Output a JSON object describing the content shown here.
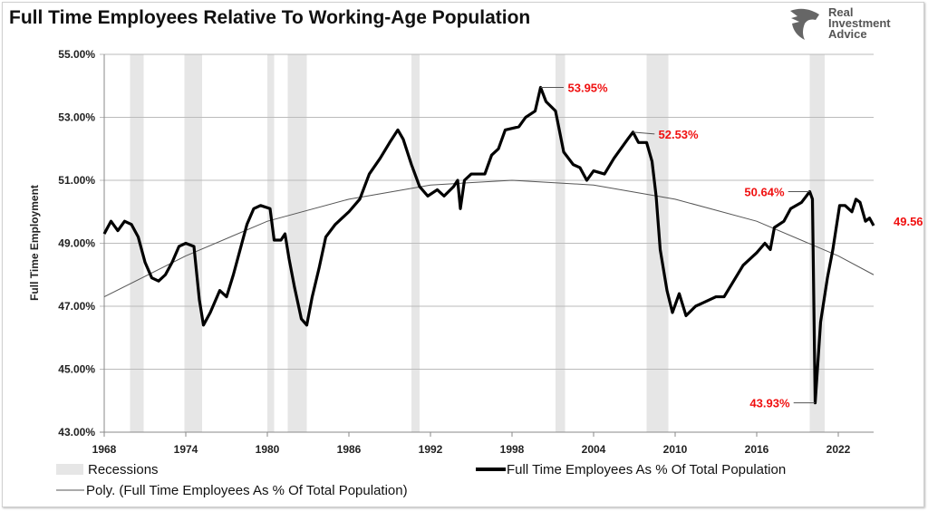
{
  "title": "Full Time Employees Relative To Working-Age Population",
  "logo": {
    "line1": "Real",
    "line2": "Investment",
    "line3": "Advice"
  },
  "chart_data": {
    "type": "line",
    "title": "Full Time Employees Relative To Working-Age Population",
    "ylabel": "Full Time Employment",
    "xlabel": "",
    "xlim": [
      1968,
      2024.6
    ],
    "ylim": [
      43,
      55
    ],
    "x_ticks": [
      "1968",
      "1974",
      "1980",
      "1986",
      "1992",
      "1998",
      "2004",
      "2010",
      "2016",
      "2022"
    ],
    "y_ticks": [
      "55.00%",
      "53.00%",
      "51.00%",
      "49.00%",
      "47.00%",
      "45.00%",
      "43.00%"
    ],
    "grid": "horizontal",
    "legend": {
      "placement": "bottom",
      "recessions": "Recessions",
      "series": "Full Time Employees As % Of Total Population",
      "trend": "Poly. (Full Time Employees As % Of Total Population)"
    },
    "recessions": [
      [
        1969.9,
        1970.9
      ],
      [
        1973.9,
        1975.2
      ],
      [
        1980.0,
        1980.5
      ],
      [
        1981.5,
        1982.9
      ],
      [
        1990.6,
        1991.2
      ],
      [
        2001.2,
        2001.9
      ],
      [
        2007.9,
        2009.5
      ],
      [
        2019.9,
        2021.0
      ]
    ],
    "series": [
      {
        "name": "Full Time Employees As % Of Total Population",
        "color": "#000000",
        "points": [
          [
            1968.0,
            49.3
          ],
          [
            1968.5,
            49.7
          ],
          [
            1969.0,
            49.4
          ],
          [
            1969.5,
            49.7
          ],
          [
            1970.0,
            49.6
          ],
          [
            1970.5,
            49.2
          ],
          [
            1971.0,
            48.4
          ],
          [
            1971.5,
            47.9
          ],
          [
            1972.0,
            47.8
          ],
          [
            1972.5,
            48.0
          ],
          [
            1973.0,
            48.4
          ],
          [
            1973.5,
            48.9
          ],
          [
            1974.0,
            49.0
          ],
          [
            1974.6,
            48.9
          ],
          [
            1975.0,
            47.2
          ],
          [
            1975.3,
            46.4
          ],
          [
            1975.8,
            46.8
          ],
          [
            1976.5,
            47.5
          ],
          [
            1977.0,
            47.3
          ],
          [
            1977.5,
            48.0
          ],
          [
            1978.0,
            48.8
          ],
          [
            1978.5,
            49.6
          ],
          [
            1979.0,
            50.1
          ],
          [
            1979.5,
            50.2
          ],
          [
            1980.2,
            50.1
          ],
          [
            1980.5,
            49.1
          ],
          [
            1981.0,
            49.1
          ],
          [
            1981.3,
            49.3
          ],
          [
            1981.6,
            48.5
          ],
          [
            1982.0,
            47.6
          ],
          [
            1982.5,
            46.6
          ],
          [
            1982.9,
            46.4
          ],
          [
            1983.3,
            47.3
          ],
          [
            1983.8,
            48.2
          ],
          [
            1984.3,
            49.2
          ],
          [
            1985.0,
            49.6
          ],
          [
            1985.5,
            49.8
          ],
          [
            1986.0,
            50.0
          ],
          [
            1986.8,
            50.4
          ],
          [
            1987.5,
            51.2
          ],
          [
            1988.3,
            51.7
          ],
          [
            1989.0,
            52.2
          ],
          [
            1989.6,
            52.6
          ],
          [
            1990.0,
            52.3
          ],
          [
            1990.6,
            51.5
          ],
          [
            1991.2,
            50.8
          ],
          [
            1991.8,
            50.5
          ],
          [
            1992.5,
            50.7
          ],
          [
            1993.0,
            50.5
          ],
          [
            1993.7,
            50.8
          ],
          [
            1994.0,
            51.0
          ],
          [
            1994.2,
            50.1
          ],
          [
            1994.5,
            51.0
          ],
          [
            1995.0,
            51.2
          ],
          [
            1996.0,
            51.2
          ],
          [
            1996.5,
            51.8
          ],
          [
            1997.0,
            52.0
          ],
          [
            1997.5,
            52.6
          ],
          [
            1998.5,
            52.7
          ],
          [
            1999.0,
            53.0
          ],
          [
            1999.7,
            53.2
          ],
          [
            2000.1,
            53.95
          ],
          [
            2000.5,
            53.5
          ],
          [
            2001.2,
            53.2
          ],
          [
            2001.8,
            51.9
          ],
          [
            2002.5,
            51.5
          ],
          [
            2003.0,
            51.4
          ],
          [
            2003.5,
            51.0
          ],
          [
            2004.0,
            51.3
          ],
          [
            2004.8,
            51.2
          ],
          [
            2005.5,
            51.7
          ],
          [
            2006.5,
            52.3
          ],
          [
            2006.9,
            52.53
          ],
          [
            2007.3,
            52.2
          ],
          [
            2007.9,
            52.2
          ],
          [
            2008.3,
            51.6
          ],
          [
            2008.6,
            50.5
          ],
          [
            2008.9,
            48.8
          ],
          [
            2009.4,
            47.5
          ],
          [
            2009.8,
            46.8
          ],
          [
            2010.3,
            47.4
          ],
          [
            2010.8,
            46.7
          ],
          [
            2011.5,
            47.0
          ],
          [
            2012.0,
            47.1
          ],
          [
            2013.0,
            47.3
          ],
          [
            2013.6,
            47.3
          ],
          [
            2014.3,
            47.8
          ],
          [
            2015.0,
            48.3
          ],
          [
            2016.0,
            48.7
          ],
          [
            2016.6,
            49.0
          ],
          [
            2017.0,
            48.8
          ],
          [
            2017.3,
            49.5
          ],
          [
            2018.0,
            49.7
          ],
          [
            2018.5,
            50.1
          ],
          [
            2019.3,
            50.3
          ],
          [
            2019.9,
            50.64
          ],
          [
            2020.1,
            50.4
          ],
          [
            2020.3,
            43.93
          ],
          [
            2020.7,
            46.5
          ],
          [
            2021.2,
            47.9
          ],
          [
            2021.6,
            48.8
          ],
          [
            2022.1,
            50.2
          ],
          [
            2022.5,
            50.2
          ],
          [
            2023.0,
            50.0
          ],
          [
            2023.3,
            50.4
          ],
          [
            2023.6,
            50.3
          ],
          [
            2024.0,
            49.7
          ],
          [
            2024.3,
            49.8
          ],
          [
            2024.6,
            49.56
          ]
        ]
      },
      {
        "name": "Poly. (Full Time Employees As % Of Total Population)",
        "color": "#555555",
        "points": [
          [
            1968,
            47.3
          ],
          [
            1974,
            48.6
          ],
          [
            1980,
            49.7
          ],
          [
            1986,
            50.4
          ],
          [
            1992,
            50.85
          ],
          [
            1998,
            51.0
          ],
          [
            2004,
            50.85
          ],
          [
            2010,
            50.4
          ],
          [
            2016,
            49.7
          ],
          [
            2022,
            48.6
          ],
          [
            2024.6,
            48.0
          ]
        ]
      }
    ],
    "annotations": [
      {
        "x": 2000.1,
        "y": 53.95,
        "label": "53.95%",
        "color": "#f01010"
      },
      {
        "x": 2006.9,
        "y": 52.53,
        "label": "52.53%",
        "color": "#f01010"
      },
      {
        "x": 2019.9,
        "y": 50.64,
        "label": "50.64%",
        "color": "#f01010"
      },
      {
        "x": 2020.3,
        "y": 43.93,
        "label": "43.93%",
        "color": "#f01010"
      },
      {
        "x": 2024.6,
        "y": 49.56,
        "label": "49.56",
        "color": "#f01010"
      }
    ]
  }
}
